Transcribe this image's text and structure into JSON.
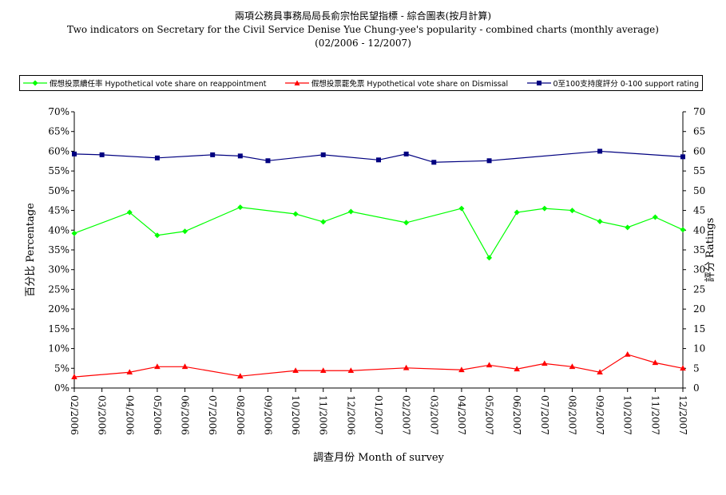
{
  "chart_data": {
    "type": "line",
    "title": "兩項公務員事務局局長俞宗怡民望指標 - 綜合圖表(按月計算)",
    "subtitle": "Two indicators on Secretary for the Civil Service Denise Yue Chung-yee's popularity - combined charts (monthly average)",
    "date_range": "(02/2006 - 12/2007)",
    "xlabel": "調查月份 Month of survey",
    "ylabel_left": "百分比 Percentage",
    "ylabel_right": "評分 Ratings",
    "ylim_left": [
      0,
      70
    ],
    "ylim_right": [
      0,
      70
    ],
    "y_ticks_left": [
      "0%",
      "5%",
      "10%",
      "15%",
      "20%",
      "25%",
      "30%",
      "35%",
      "40%",
      "45%",
      "50%",
      "55%",
      "60%",
      "65%",
      "70%"
    ],
    "y_ticks_right": [
      "0",
      "5",
      "10",
      "15",
      "20",
      "25",
      "30",
      "35",
      "40",
      "45",
      "50",
      "55",
      "60",
      "65",
      "70"
    ],
    "categories": [
      "02/2006",
      "03/2006",
      "04/2006",
      "05/2006",
      "06/2006",
      "07/2006",
      "08/2006",
      "09/2006",
      "10/2006",
      "11/2006",
      "12/2006",
      "01/2007",
      "02/2007",
      "03/2007",
      "04/2007",
      "05/2007",
      "06/2007",
      "07/2007",
      "08/2007",
      "09/2007",
      "10/2007",
      "11/2007",
      "12/2007"
    ],
    "legend_position": "top",
    "series": [
      {
        "name": "假想投票續任率 Hypothetical vote share on reappointment",
        "axis": "left",
        "color": "#00ff00",
        "marker": "diamond",
        "values": [
          39.2,
          null,
          44.5,
          38.7,
          39.7,
          null,
          45.8,
          null,
          44.1,
          42.1,
          44.7,
          null,
          41.9,
          null,
          45.5,
          33.0,
          44.5,
          45.5,
          45.0,
          42.2,
          40.7,
          43.3,
          40.1
        ]
      },
      {
        "name": "假想投票罷免票 Hypothetical vote share on Dismissal",
        "axis": "left",
        "color": "#ff0000",
        "marker": "triangle",
        "values": [
          2.8,
          null,
          4.0,
          5.4,
          5.4,
          null,
          3.0,
          null,
          4.4,
          4.4,
          4.4,
          null,
          5.1,
          null,
          4.6,
          5.8,
          4.8,
          6.2,
          5.4,
          4.0,
          8.5,
          6.4,
          5.0
        ]
      },
      {
        "name": "0至100支持度評分 0-100 support rating",
        "axis": "right",
        "color": "#000080",
        "marker": "square",
        "values": [
          59.3,
          59.1,
          null,
          58.3,
          null,
          59.1,
          58.8,
          57.6,
          null,
          59.1,
          null,
          57.8,
          59.3,
          57.2,
          null,
          57.6,
          null,
          null,
          null,
          60.0,
          null,
          null,
          58.6
        ]
      }
    ]
  }
}
